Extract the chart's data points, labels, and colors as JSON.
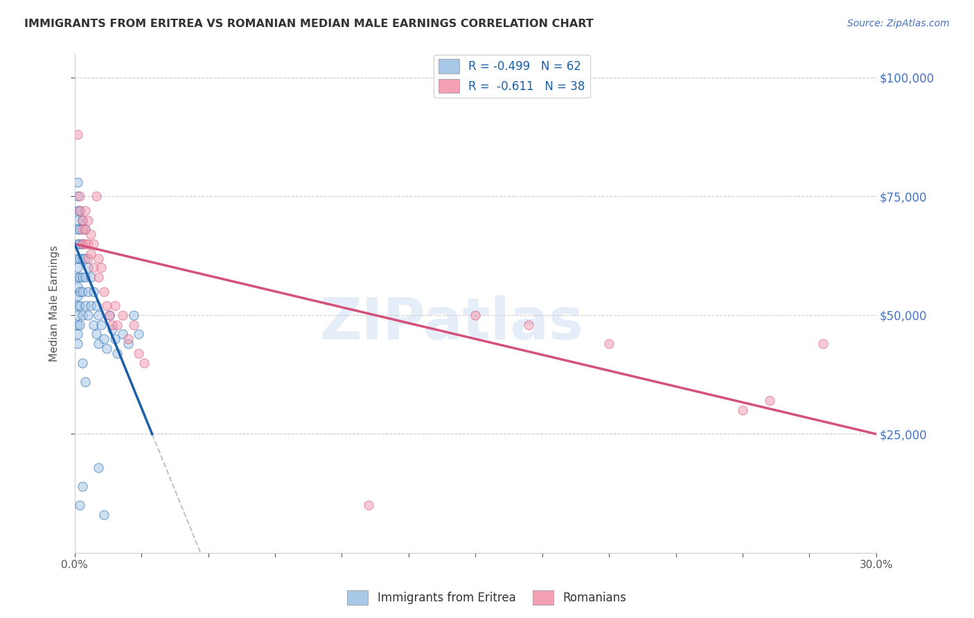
{
  "title": "IMMIGRANTS FROM ERITREA VS ROMANIAN MEDIAN MALE EARNINGS CORRELATION CHART",
  "source": "Source: ZipAtlas.com",
  "ylabel": "Median Male Earnings",
  "y_ticks": [
    25000,
    50000,
    75000,
    100000
  ],
  "y_tick_labels": [
    "$25,000",
    "$50,000",
    "$75,000",
    "$100,000"
  ],
  "x_min": 0.0,
  "x_max": 0.3,
  "y_min": 0,
  "y_max": 105000,
  "eritrea_label1": "R = -0.499",
  "eritrea_label2": "N = 62",
  "romanian_label1": "R =  -0.611",
  "romanian_label2": "N = 38",
  "eritrea_color": "#a8c8e8",
  "romanian_color": "#f4a0b5",
  "eritrea_line_color": "#1a5fa8",
  "romanian_line_color": "#d4527a",
  "watermark": "ZIPatlas",
  "background_color": "#ffffff",
  "dot_size": 90,
  "dot_alpha": 0.55,
  "eritrea_points": [
    [
      0.001,
      78000
    ],
    [
      0.001,
      75000
    ],
    [
      0.001,
      72000
    ],
    [
      0.001,
      70000
    ],
    [
      0.001,
      68000
    ],
    [
      0.001,
      65000
    ],
    [
      0.001,
      62000
    ],
    [
      0.001,
      60000
    ],
    [
      0.001,
      58000
    ],
    [
      0.001,
      56000
    ],
    [
      0.001,
      54000
    ],
    [
      0.001,
      52000
    ],
    [
      0.001,
      50000
    ],
    [
      0.001,
      48000
    ],
    [
      0.001,
      46000
    ],
    [
      0.001,
      44000
    ],
    [
      0.002,
      72000
    ],
    [
      0.002,
      68000
    ],
    [
      0.002,
      65000
    ],
    [
      0.002,
      62000
    ],
    [
      0.002,
      58000
    ],
    [
      0.002,
      55000
    ],
    [
      0.002,
      52000
    ],
    [
      0.002,
      48000
    ],
    [
      0.003,
      70000
    ],
    [
      0.003,
      65000
    ],
    [
      0.003,
      62000
    ],
    [
      0.003,
      58000
    ],
    [
      0.003,
      55000
    ],
    [
      0.003,
      50000
    ],
    [
      0.004,
      68000
    ],
    [
      0.004,
      62000
    ],
    [
      0.004,
      58000
    ],
    [
      0.004,
      52000
    ],
    [
      0.005,
      60000
    ],
    [
      0.005,
      55000
    ],
    [
      0.005,
      50000
    ],
    [
      0.006,
      58000
    ],
    [
      0.006,
      52000
    ],
    [
      0.007,
      55000
    ],
    [
      0.007,
      48000
    ],
    [
      0.008,
      52000
    ],
    [
      0.008,
      46000
    ],
    [
      0.009,
      50000
    ],
    [
      0.009,
      44000
    ],
    [
      0.01,
      48000
    ],
    [
      0.011,
      45000
    ],
    [
      0.012,
      43000
    ],
    [
      0.013,
      50000
    ],
    [
      0.014,
      47000
    ],
    [
      0.015,
      45000
    ],
    [
      0.016,
      42000
    ],
    [
      0.018,
      46000
    ],
    [
      0.02,
      44000
    ],
    [
      0.022,
      50000
    ],
    [
      0.024,
      46000
    ],
    [
      0.002,
      10000
    ],
    [
      0.003,
      14000
    ],
    [
      0.003,
      40000
    ],
    [
      0.004,
      36000
    ],
    [
      0.009,
      18000
    ],
    [
      0.011,
      8000
    ]
  ],
  "romanian_points": [
    [
      0.001,
      88000
    ],
    [
      0.002,
      75000
    ],
    [
      0.002,
      72000
    ],
    [
      0.003,
      70000
    ],
    [
      0.003,
      68000
    ],
    [
      0.003,
      65000
    ],
    [
      0.004,
      72000
    ],
    [
      0.004,
      68000
    ],
    [
      0.004,
      65000
    ],
    [
      0.005,
      70000
    ],
    [
      0.005,
      65000
    ],
    [
      0.005,
      62000
    ],
    [
      0.006,
      67000
    ],
    [
      0.006,
      63000
    ],
    [
      0.007,
      65000
    ],
    [
      0.007,
      60000
    ],
    [
      0.008,
      75000
    ],
    [
      0.009,
      62000
    ],
    [
      0.009,
      58000
    ],
    [
      0.01,
      60000
    ],
    [
      0.011,
      55000
    ],
    [
      0.012,
      52000
    ],
    [
      0.013,
      50000
    ],
    [
      0.014,
      48000
    ],
    [
      0.015,
      52000
    ],
    [
      0.016,
      48000
    ],
    [
      0.018,
      50000
    ],
    [
      0.02,
      45000
    ],
    [
      0.022,
      48000
    ],
    [
      0.024,
      42000
    ],
    [
      0.026,
      40000
    ],
    [
      0.15,
      50000
    ],
    [
      0.17,
      48000
    ],
    [
      0.2,
      44000
    ],
    [
      0.25,
      30000
    ],
    [
      0.26,
      32000
    ],
    [
      0.11,
      10000
    ],
    [
      0.28,
      44000
    ]
  ]
}
